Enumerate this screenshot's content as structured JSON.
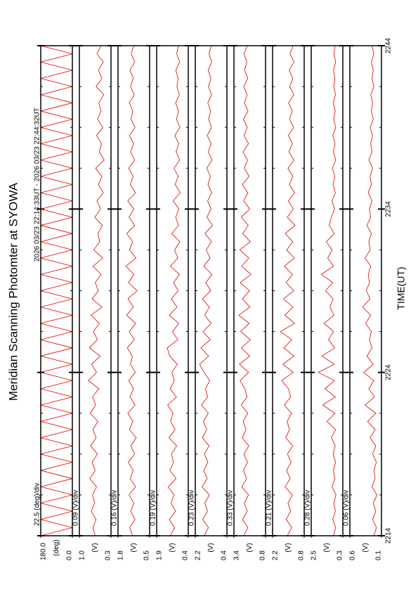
{
  "chart_data": {
    "type": "line",
    "title": "Meridian Scanning Photomter at SYOWA",
    "subtitle": "2026 03/23 22:14:33UT - 2026 03/23 22:44:32UT",
    "xlabel": "TIME(UT)",
    "xlim": [
      0,
      30
    ],
    "xticks": [
      {
        "value": 0,
        "label": "2214"
      },
      {
        "value": 10,
        "label": "2224"
      },
      {
        "value": 20,
        "label": "2234"
      },
      {
        "value": 30,
        "label": "2244"
      }
    ],
    "xminorticks": [
      2.5,
      5,
      7.5,
      12.5,
      15,
      17.5,
      22.5,
      25,
      27.5
    ],
    "x": [
      0,
      0.5,
      1,
      1.5,
      2,
      2.5,
      3,
      3.5,
      4,
      4.5,
      5,
      5.5,
      6,
      6.5,
      7,
      7.5,
      8,
      8.5,
      9,
      9.5,
      10,
      10.5,
      11,
      11.5,
      12,
      12.5,
      13,
      13.5,
      14,
      14.5,
      15,
      15.5,
      16,
      16.5,
      17,
      17.5,
      18,
      18.5,
      19,
      19.5,
      20,
      20.5,
      21,
      21.5,
      22,
      22.5,
      23,
      23.5,
      24,
      24.5,
      25,
      25.5,
      26,
      26.5,
      27,
      27.5,
      28,
      28.5,
      29,
      29.5,
      30
    ],
    "series": [
      {
        "label": "22.5 (deg)/div",
        "unit": "(deg)",
        "color": "#e00000",
        "ylim": [
          0,
          180
        ],
        "yticks": [
          {
            "value": 180,
            "label": "180.0"
          },
          {
            "value": 0,
            "label": "0.0"
          }
        ],
        "values": [
          180,
          0,
          180,
          0,
          180,
          0,
          180,
          0,
          180,
          0,
          180,
          0,
          180,
          0,
          180,
          0,
          180,
          0,
          180,
          0,
          180,
          0,
          180,
          0,
          180,
          0,
          180,
          0,
          180,
          0,
          180,
          0,
          180,
          0,
          180,
          0,
          180,
          0,
          180,
          0,
          180,
          0,
          180,
          0,
          180,
          0,
          180,
          0,
          180,
          0,
          180,
          0,
          180,
          0,
          180,
          0,
          180,
          0,
          180,
          0,
          180
        ]
      },
      {
        "label": "0.09 (V)/div",
        "unit": "(V)",
        "color": "#e00000",
        "ylim": [
          0.3,
          1.0
        ],
        "yticks": [
          {
            "value": 1.0,
            "label": "1.0"
          },
          0.3
        ],
        "values": [
          0.65,
          0.7,
          0.63,
          0.74,
          0.66,
          0.71,
          0.62,
          0.77,
          0.65,
          0.72,
          0.6,
          0.75,
          0.63,
          0.7,
          0.59,
          0.76,
          0.64,
          0.71,
          0.57,
          0.8,
          0.62,
          0.73,
          0.54,
          0.78,
          0.6,
          0.69,
          0.56,
          0.74,
          0.5,
          0.72,
          0.58,
          0.65,
          0.52,
          0.7,
          0.48,
          0.68,
          0.55,
          0.59,
          0.49,
          0.66,
          0.53,
          0.61,
          0.47,
          0.58,
          0.5,
          0.64,
          0.45,
          0.56,
          0.51,
          0.62,
          0.48,
          0.6,
          0.52,
          0.57,
          0.46,
          0.63,
          0.5,
          0.58,
          0.47,
          0.61,
          0.52
        ]
      },
      {
        "label": "0.16 (V)/div",
        "unit": "(V)",
        "color": "#e00000",
        "ylim": [
          0.5,
          1.8
        ],
        "yticks": [
          1.8,
          0.5
        ],
        "values": [
          1.2,
          1.32,
          1.1,
          1.28,
          1.15,
          1.35,
          1.08,
          1.3,
          1.18,
          1.38,
          1.12,
          1.27,
          1.05,
          1.33,
          1.19,
          1.4,
          1.1,
          1.31,
          1.16,
          1.36,
          1.09,
          1.29,
          1.21,
          1.42,
          1.13,
          1.34,
          1.07,
          1.45,
          1.17,
          1.39,
          1.02,
          1.37,
          1.14,
          1.48,
          1.06,
          1.33,
          1.2,
          1.44,
          1.11,
          1.35,
          1.15,
          1.4,
          1.08,
          1.3,
          1.18,
          1.36,
          1.12,
          1.28,
          1.16,
          1.33,
          1.1,
          1.27,
          1.19,
          1.34,
          1.13,
          1.29,
          1.17,
          1.31,
          1.11,
          1.26,
          1.15
        ]
      },
      {
        "label": "0.19 (V)/div",
        "unit": "(V)",
        "color": "#e00000",
        "ylim": [
          0.4,
          1.9
        ],
        "yticks": [
          1.9,
          0.4
        ],
        "values": [
          1.25,
          1.05,
          1.3,
          1.0,
          1.22,
          1.08,
          1.35,
          0.98,
          1.27,
          1.1,
          1.2,
          0.95,
          1.32,
          1.02,
          1.24,
          1.12,
          1.38,
          0.96,
          1.26,
          1.06,
          1.18,
          0.92,
          1.28,
          1.4,
          0.9,
          1.15,
          0.85,
          1.3,
          0.94,
          1.2,
          0.88,
          1.1,
          0.82,
          1.25,
          0.9,
          1.05,
          0.8,
          1.18,
          0.86,
          1.0,
          0.84,
          1.12,
          0.78,
          1.02,
          0.88,
          1.08,
          0.8,
          0.98,
          0.85,
          1.04,
          0.79,
          0.96,
          0.86,
          1.0,
          0.82,
          0.94,
          0.88,
          0.99,
          0.81,
          0.95,
          0.87
        ]
      },
      {
        "label": "0.23 (V)/div",
        "unit": "(V)",
        "color": "#e00000",
        "ylim": [
          0.4,
          2.2
        ],
        "yticks": [
          2.2,
          0.4
        ],
        "values": [
          1.7,
          1.45,
          1.78,
          1.5,
          1.66,
          1.4,
          1.82,
          1.52,
          1.72,
          1.48,
          1.68,
          1.42,
          1.8,
          1.55,
          1.74,
          1.46,
          1.85,
          1.5,
          1.62,
          1.38,
          1.7,
          1.95,
          1.44,
          1.88,
          1.35,
          1.76,
          1.3,
          1.66,
          1.4,
          1.8,
          1.32,
          1.6,
          1.25,
          1.72,
          1.36,
          1.58,
          1.28,
          1.65,
          1.22,
          1.54,
          1.3,
          1.5,
          1.26,
          1.48,
          1.34,
          1.55,
          1.24,
          1.46,
          1.3,
          1.52,
          1.28,
          1.44,
          1.33,
          1.49,
          1.27,
          1.45,
          1.31,
          1.47,
          1.26,
          1.42,
          1.3
        ]
      },
      {
        "label": "0.33 (V)/div",
        "unit": "(V)",
        "color": "#e00000",
        "ylim": [
          0.8,
          3.4
        ],
        "yticks": [
          3.4,
          0.8
        ],
        "values": [
          2.6,
          2.25,
          2.7,
          2.3,
          2.55,
          2.2,
          2.75,
          2.35,
          2.62,
          2.28,
          2.58,
          2.18,
          2.72,
          2.4,
          2.65,
          2.26,
          2.8,
          2.32,
          2.5,
          2.9,
          2.2,
          2.95,
          2.1,
          2.78,
          2.05,
          2.85,
          2.15,
          3.0,
          2.08,
          2.7,
          2.12,
          2.88,
          2.0,
          2.76,
          2.18,
          2.92,
          2.06,
          2.68,
          2.22,
          2.8,
          2.1,
          2.6,
          2.25,
          2.72,
          2.15,
          2.55,
          2.28,
          2.66,
          2.2,
          2.58,
          2.3,
          2.62,
          2.24,
          2.54,
          2.32,
          2.6,
          2.26,
          2.52,
          2.34,
          2.58,
          2.3
        ]
      },
      {
        "label": "0.21 (V)/div",
        "unit": "(V)",
        "color": "#e00000",
        "ylim": [
          0.8,
          2.2
        ],
        "yticks": [
          2.2,
          0.8
        ],
        "values": [
          1.55,
          1.35,
          1.6,
          1.4,
          1.52,
          1.32,
          1.65,
          1.42,
          1.58,
          1.38,
          1.54,
          1.3,
          1.62,
          1.45,
          1.56,
          1.36,
          1.68,
          1.4,
          1.5,
          1.8,
          1.28,
          1.75,
          1.25,
          1.7,
          1.35,
          1.85,
          1.22,
          1.66,
          1.3,
          1.72,
          1.26,
          1.6,
          1.32,
          1.68,
          1.24,
          1.58,
          1.3,
          1.64,
          1.2,
          1.55,
          1.28,
          1.5,
          1.22,
          1.46,
          1.3,
          1.52,
          1.25,
          1.48,
          1.32,
          1.5,
          1.27,
          1.45,
          1.33,
          1.49,
          1.26,
          1.44,
          1.3,
          1.47,
          1.25,
          1.43,
          1.29
        ]
      },
      {
        "label": "0.28 (V)/div",
        "unit": "(V)",
        "color": "#e00000",
        "ylim": [
          0.3,
          2.5
        ],
        "yticks": [
          2.5,
          0.3
        ],
        "values": [
          0.95,
          0.8,
          1.0,
          0.82,
          0.92,
          0.78,
          1.05,
          0.85,
          0.96,
          0.8,
          0.98,
          0.83,
          1.1,
          0.8,
          1.4,
          0.85,
          1.7,
          0.82,
          1.55,
          0.88,
          2.0,
          0.9,
          1.75,
          0.86,
          1.3,
          0.95,
          1.6,
          0.92,
          1.2,
          0.98,
          1.5,
          1.0,
          1.8,
          0.95,
          1.35,
          1.05,
          1.45,
          0.9,
          1.25,
          1.1,
          0.88,
          1.05,
          0.82,
          0.98,
          0.86,
          1.02,
          0.8,
          0.96,
          0.84,
          1.0,
          0.79,
          0.94,
          0.83,
          0.97,
          0.81,
          0.93,
          0.85,
          0.95,
          0.8,
          0.92,
          0.84
        ]
      },
      {
        "label": "0.06 (V)/div",
        "unit": "(V)",
        "color": "#e00000",
        "ylim": [
          0.1,
          0.6
        ],
        "yticks": [
          0.6,
          0.1
        ],
        "values": [
          0.22,
          0.18,
          0.24,
          0.19,
          0.23,
          0.17,
          0.25,
          0.2,
          0.22,
          0.18,
          0.24,
          0.19,
          0.28,
          0.2,
          0.32,
          0.19,
          0.36,
          0.21,
          0.3,
          0.22,
          0.38,
          0.23,
          0.33,
          0.25,
          0.29,
          0.26,
          0.35,
          0.27,
          0.4,
          0.28,
          0.34,
          0.29,
          0.31,
          0.27,
          0.36,
          0.28,
          0.3,
          0.26,
          0.33,
          0.27,
          0.29,
          0.25,
          0.31,
          0.26,
          0.28,
          0.24,
          0.3,
          0.25,
          0.27,
          0.24,
          0.28,
          0.23,
          0.26,
          0.24,
          0.27,
          0.22,
          0.25,
          0.23,
          0.26,
          0.22,
          0.25
        ]
      }
    ]
  }
}
